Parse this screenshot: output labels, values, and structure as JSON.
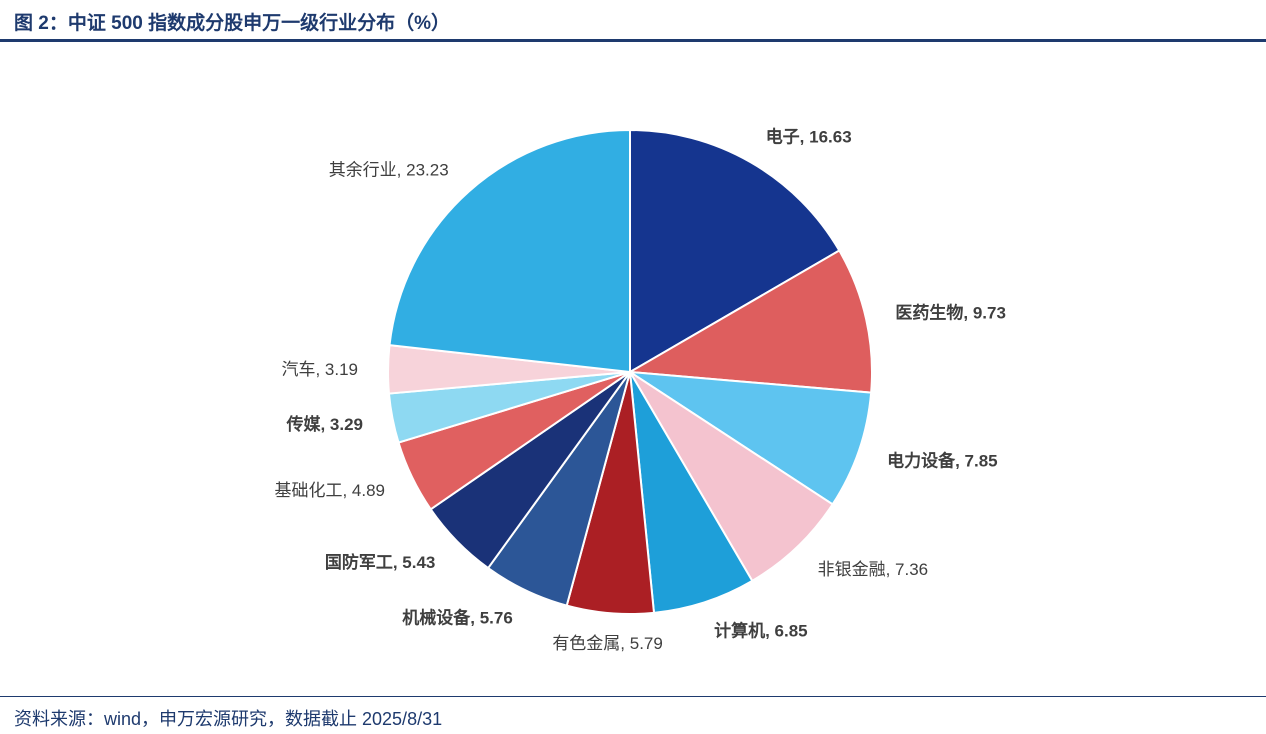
{
  "header": {
    "title": "图 2：中证 500 指数成分股申万一级行业分布（%）"
  },
  "footer": {
    "source": "资料来源：wind，申万宏源研究，数据截止 2025/8/31"
  },
  "theme": {
    "accent_navy": "#1E3A6E",
    "label_color": "#3F3F3F",
    "slice_stroke": "#FFFFFF"
  },
  "chart_data": {
    "type": "pie",
    "title": "中证 500 指数成分股申万一级行业分布（%）",
    "unit": "%",
    "start_angle_deg": 0,
    "direction": "clockwise",
    "label_format": "{label}, {value}",
    "slices": [
      {
        "label": "电子",
        "value": 16.63,
        "color": "#15358F",
        "bold": true
      },
      {
        "label": "医药生物",
        "value": 9.73,
        "color": "#DE5E5E",
        "bold": true
      },
      {
        "label": "电力设备",
        "value": 7.85,
        "color": "#5EC4F0",
        "bold": true
      },
      {
        "label": "非银金融",
        "value": 7.36,
        "color": "#F4C3CF",
        "bold": false
      },
      {
        "label": "计算机",
        "value": 6.85,
        "color": "#1E9FD9",
        "bold": true
      },
      {
        "label": "有色金属",
        "value": 5.79,
        "color": "#AB1F24",
        "bold": false
      },
      {
        "label": "机械设备",
        "value": 5.76,
        "color": "#2C5697",
        "bold": true
      },
      {
        "label": "国防军工",
        "value": 5.43,
        "color": "#1A3278",
        "bold": true
      },
      {
        "label": "基础化工",
        "value": 4.89,
        "color": "#E06060",
        "bold": false
      },
      {
        "label": "传媒",
        "value": 3.29,
        "color": "#8ED9F2",
        "bold": true
      },
      {
        "label": "汽车",
        "value": 3.19,
        "color": "#F7D3DA",
        "bold": false
      },
      {
        "label": "其余行业",
        "value": 23.23,
        "color": "#31AEE3",
        "bold": false
      }
    ]
  }
}
